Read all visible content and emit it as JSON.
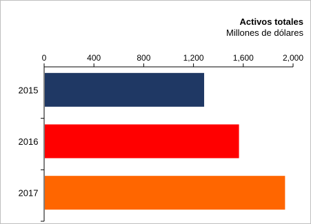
{
  "chart_data": {
    "type": "bar",
    "orientation": "horizontal",
    "title": "Activos totales",
    "subtitle": "Millones de dólares",
    "categories": [
      "2015",
      "2016",
      "2017"
    ],
    "values": [
      1280,
      1560,
      1930
    ],
    "bar_colors": [
      "#1f3864",
      "#ff0000",
      "#ff6600"
    ],
    "xlim": [
      0,
      2000
    ],
    "x_ticks": [
      0,
      400,
      800,
      1200,
      1600,
      2000
    ],
    "x_tick_labels": [
      "0",
      "400",
      "800",
      "1,200",
      "1,600",
      "2,000"
    ],
    "x_axis_position": "top",
    "grid": false,
    "legend": "none"
  }
}
